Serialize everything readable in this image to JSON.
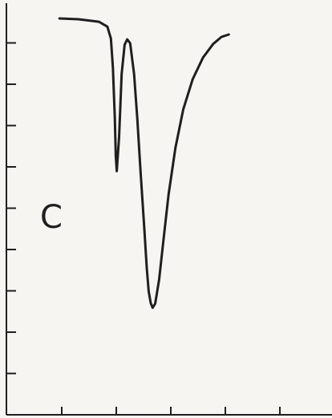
{
  "chart_data": {
    "type": "line",
    "title": "",
    "panel_label": "C",
    "xlabel": "",
    "ylabel": "",
    "xlim": [
      0,
      1
    ],
    "ylim": [
      0,
      1
    ],
    "grid": false,
    "x_tick_count": 6,
    "y_tick_count": 9,
    "series": [
      {
        "x": [
          0.163,
          0.222,
          0.284,
          0.31,
          0.321,
          0.327,
          0.333,
          0.336,
          0.339,
          0.346,
          0.354,
          0.363,
          0.371,
          0.38,
          0.392,
          0.402,
          0.412,
          0.423,
          0.431,
          0.437,
          0.443,
          0.449,
          0.457,
          0.469,
          0.482,
          0.498,
          0.519,
          0.543,
          0.572,
          0.604,
          0.635,
          0.66,
          0.683
        ],
        "y": [
          0.963,
          0.961,
          0.955,
          0.943,
          0.914,
          0.843,
          0.72,
          0.628,
          0.592,
          0.675,
          0.828,
          0.899,
          0.912,
          0.903,
          0.828,
          0.72,
          0.59,
          0.46,
          0.357,
          0.3,
          0.272,
          0.26,
          0.27,
          0.328,
          0.422,
          0.535,
          0.648,
          0.742,
          0.815,
          0.868,
          0.901,
          0.918,
          0.924
        ]
      }
    ]
  }
}
